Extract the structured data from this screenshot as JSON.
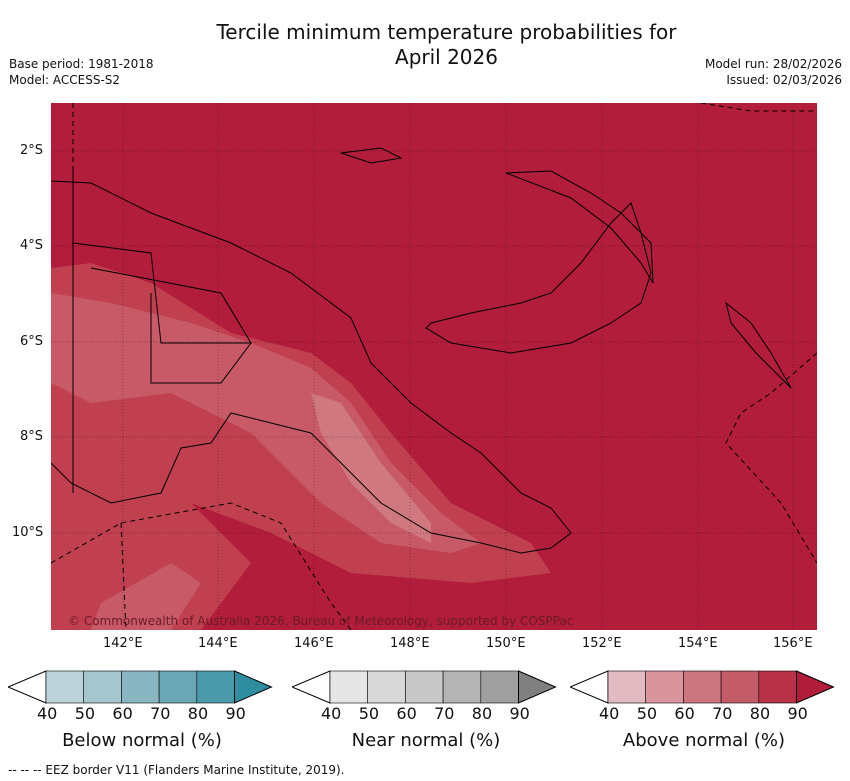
{
  "title_line1": "Tercile minimum temperature probabilities for",
  "title_line2": "April 2026",
  "base_period": "Base period: 1981-2018",
  "model": "Model: ACCESS-S2",
  "model_run": "Model run: 28/02/2026",
  "issued": "Issued: 02/03/2026",
  "copyright": "© Commonwealth of Australia 2026, Bureau of Meteorology, supported by COSPPac",
  "lat_ticks": [
    "2°S",
    "4°S",
    "6°S",
    "8°S",
    "10°S"
  ],
  "lon_ticks": [
    "142°E",
    "144°E",
    "146°E",
    "148°E",
    "150°E",
    "152°E",
    "154°E",
    "156°E"
  ],
  "colorbars": [
    {
      "label": "Below normal (%)",
      "ticks": [
        "40",
        "50",
        "60",
        "70",
        "80",
        "90"
      ],
      "colors": [
        "#bcd3da",
        "#a6c6cd",
        "#8ab6c1",
        "#69a7b5",
        "#4a9aab",
        "#2f8da0"
      ]
    },
    {
      "label": "Near normal (%)",
      "ticks": [
        "40",
        "50",
        "60",
        "70",
        "80",
        "90"
      ],
      "colors": [
        "#e6e6e6",
        "#d8d8d8",
        "#c8c8c8",
        "#b4b4b4",
        "#a0a0a0",
        "#808080"
      ]
    },
    {
      "label": "Above normal (%)",
      "ticks": [
        "40",
        "50",
        "60",
        "70",
        "80",
        "90"
      ],
      "colors": [
        "#e2bac1",
        "#d9959e",
        "#cc7780",
        "#c35b68",
        "#b73148",
        "#b01c3a"
      ]
    }
  ],
  "footer": "--  --  -- EEZ border V11 (Flanders Marine Institute, 2019).",
  "colors": {
    "map_base": "#b11d3a"
  }
}
